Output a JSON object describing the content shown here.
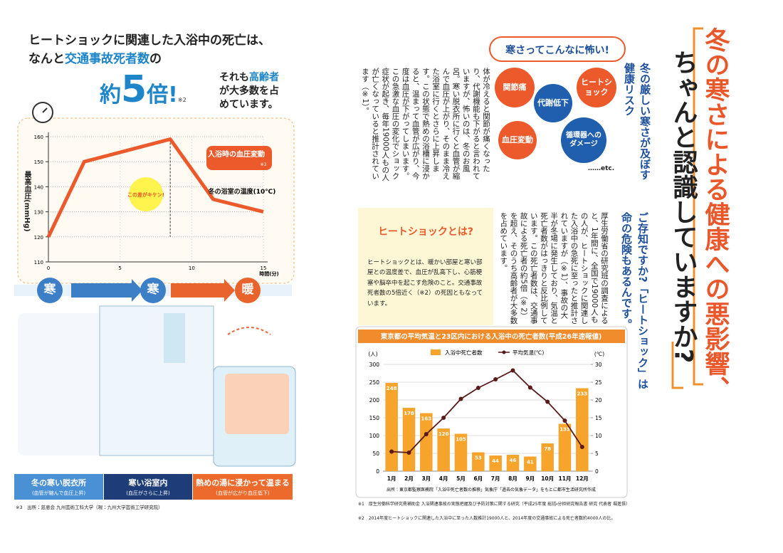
{
  "left_page": {
    "headline_1": "ヒートショックに関連した入浴中の死亡は、",
    "headline_2_a": "なんと",
    "headline_2_b": "交通事故死者数",
    "headline_2_c": "の",
    "headline_3_a": "約",
    "headline_3_b": "5",
    "headline_3_c": "倍!",
    "headline_note": "※2",
    "headline_side_a": "それも",
    "headline_side_b": "高齢者",
    "headline_side_c": "が大多数を占めています。",
    "flow": [
      "寒",
      "寒",
      "暖"
    ],
    "steps": [
      {
        "title": "冬の寒い脱衣所",
        "note": "(血管が縮んで血圧上昇)"
      },
      {
        "title": "寒い浴室内",
        "note": "(血圧がさらに上昇)"
      },
      {
        "title": "熱めの湯に浸かって温まる",
        "note": "(血管が広がり血圧低下)"
      }
    ],
    "footnote": "※3　出所：慈恵会 九州芸術工科大学（現：九州大学芸術工学研究院）"
  },
  "right_page": {
    "title_1": "冬の寒さによる健康への悪影響、",
    "title_2": "ちゃんと認識していますか?",
    "risk_heading_1": "冬の厳しい寒さが及ぼす",
    "risk_heading_2": "健康リスク",
    "bubble": "寒さってこんなに怖い!",
    "risks": [
      "関節痛",
      "ヒートショック",
      "代謝低下",
      "血圧変動",
      "循環器へのダメージ"
    ],
    "risks_more": "……etc.",
    "body_1": "体が冷えると関節が痛くなったり、代謝機能も下がると言われていますが、怖いのは、冬のお風呂。寒い脱衣所に行くと血管が縮んで血圧が上がり、そのまま冷えた浴室に行くとさらに上昇します。この状態で熱めの浴槽に浸かると、温まって血管が広がり、今度は血圧が下がってしまいます。この急激な血圧の変化でショック症状が起き、毎年19000人もの人が亡くなっていると推計されています（※1）。",
    "question_1": "ご存知ですか?「ヒートショック」は",
    "question_2": "命の危険もあるんです。",
    "body_2": "厚生労働省の研究班の調査によると、1年間に、全国で19000人もの人が、ヒートショックに関連した入浴中の急死に至ったと推計されていますが（※1）、事故の大半が冬場に発生しており、気温と死亡者数がはっきりと反比例しています。この死亡者数は、交通事故による死亡者の約5倍（※2）を超え、そのうち高齢者が大多数を占めています。",
    "box_title": "ヒートショックとは?",
    "box_text": "ヒートショックとは、暖かい部屋と寒い部屋との温度差で、血圧が乱高下し、心筋梗塞や脳卒中を起こす危険のこと。交通事故死者数の5倍近く（※2）の死因ともなっています。",
    "footnotes": [
      "※1　厚生労働科学研究費補助金 入浴関連事故の実態把握及び予防対策に関する研究（平成25年度 総括・分担研究報告書 研究 代表者 堀進悟）",
      "※2　2014年度ヒートショックに関連した入浴中に至った人数推計19000人と、2014年度の交通事故による死亡者数約4000人の比。"
    ]
  },
  "chart_data": [
    {
      "type": "line",
      "x": [
        0,
        2.5,
        8.5,
        11.5,
        15
      ],
      "values": [
        120,
        150,
        159,
        135,
        130
      ],
      "color": "#ec5a2c",
      "xlim": [
        0,
        15
      ],
      "ylim": [
        110,
        160
      ],
      "xticks": [
        0,
        5,
        10,
        15
      ],
      "yticks": [
        110,
        120,
        130,
        140,
        150,
        160
      ],
      "xlabel": "時間(分)",
      "ylabel": "最高血圧(mmHg)",
      "grid": true,
      "annotations": {
        "bp_change": "入浴時の血圧変動",
        "bp_change_note": "※3",
        "bath_temp": "冬の浴室の温度(10℃)",
        "danger": "この差がキケン!"
      }
    },
    {
      "type": "bar",
      "title": "東京都の平均気温と23区内における入浴中の死亡者数(平成26年速報値)",
      "categories": [
        "1月",
        "2月",
        "3月",
        "4月",
        "5月",
        "6月",
        "7月",
        "8月",
        "9月",
        "10月",
        "11月",
        "12月"
      ],
      "series": [
        {
          "name": "入浴中死亡者数",
          "color": "#f6a42c",
          "values": [
            248,
            178,
            163,
            120,
            105,
            53,
            44,
            46,
            41,
            78,
            133,
            233
          ]
        },
        {
          "name": "平均気温(℃)",
          "color": "#5a1a1a",
          "type": "line",
          "axis": "y2",
          "values": [
            5.5,
            5.2,
            10.4,
            15.0,
            20.3,
            23.4,
            25.8,
            28.3,
            23.5,
            19.5,
            14.2,
            6.8
          ]
        }
      ],
      "ylim": [
        0,
        300
      ],
      "yticks": [
        0,
        50,
        100,
        150,
        200,
        250,
        300
      ],
      "y2lim": [
        0,
        30
      ],
      "y2ticks": [
        0,
        5,
        10,
        15,
        20,
        25,
        30
      ],
      "ylabel": "(人)",
      "y2label": "(℃)",
      "grid": true,
      "legend": "top",
      "source": "出所：東京都監察医務院「入浴中死亡者数の推移」気象庁「過去の気象データ」をもとに都市生活研究所作成"
    }
  ]
}
